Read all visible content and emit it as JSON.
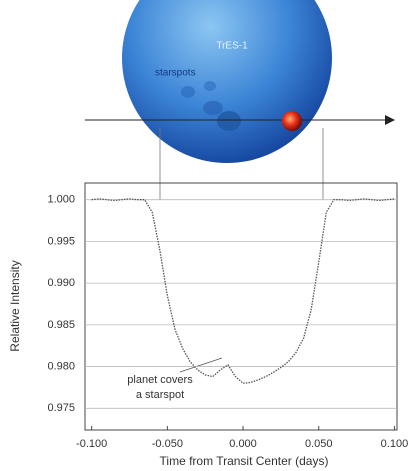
{
  "diagram": {
    "star_label": "TrES-1",
    "spots_label": "starspots"
  },
  "chart_data": {
    "type": "line",
    "y_label": "Relative Intensity",
    "x_label": "Time from Transit Center (days)",
    "annotation": [
      "planet covers",
      "a starspot"
    ],
    "color": "#555555",
    "x": [
      -0.1,
      -0.095,
      -0.09,
      -0.085,
      -0.08,
      -0.075,
      -0.07,
      -0.065,
      -0.06,
      -0.055,
      -0.05,
      -0.045,
      -0.04,
      -0.035,
      -0.03,
      -0.025,
      -0.02,
      -0.015,
      -0.01,
      -0.005,
      0,
      0.005,
      0.01,
      0.015,
      0.02,
      0.025,
      0.03,
      0.035,
      0.04,
      0.045,
      0.05,
      0.055,
      0.06,
      0.065,
      0.07,
      0.075,
      0.08,
      0.085,
      0.09,
      0.095,
      0.1
    ],
    "values": [
      1.0,
      1.0001,
      1.0,
      0.9999,
      1.0,
      1.0001,
      1.0,
      1.0,
      0.9985,
      0.994,
      0.9885,
      0.9845,
      0.9822,
      0.9806,
      0.9796,
      0.979,
      0.9788,
      0.9796,
      0.9802,
      0.9788,
      0.978,
      0.9781,
      0.9784,
      0.9788,
      0.9793,
      0.9799,
      0.9806,
      0.9817,
      0.9834,
      0.9868,
      0.9925,
      0.9985,
      1.0,
      1.0,
      0.9999,
      1.0,
      1.0001,
      1.0,
      0.9999,
      1.0,
      1.0001
    ],
    "xlim": [
      -0.1044,
      0.1017
    ],
    "ylim": [
      0.9724,
      1.002
    ],
    "xticks": [
      {
        "value": -0.1,
        "label": "-0.100"
      },
      {
        "value": -0.05,
        "label": "-0.050"
      },
      {
        "value": 0,
        "label": "0.000"
      },
      {
        "value": 0.05,
        "label": "0.050"
      },
      {
        "value": 0.1,
        "label": "0.100"
      }
    ],
    "yticks": [
      {
        "value": 0.975,
        "label": "0.975"
      },
      {
        "value": 0.98,
        "label": "0.980"
      },
      {
        "value": 0.985,
        "label": "0.985"
      },
      {
        "value": 0.99,
        "label": "0.990"
      },
      {
        "value": 0.995,
        "label": "0.995"
      },
      {
        "value": 1.0,
        "label": "1.000"
      }
    ],
    "grid": true
  }
}
